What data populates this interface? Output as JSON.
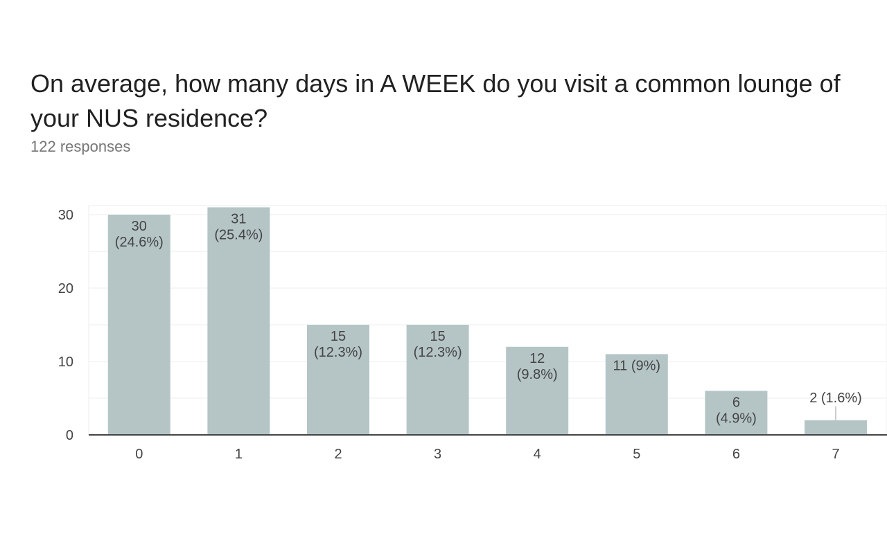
{
  "question": {
    "title": "On average, how many days in A WEEK do you visit a common lounge of your NUS residence?",
    "responses": "122 responses"
  },
  "colors": {
    "bar": "#b5c5c6",
    "grid": "#ececec",
    "axis": "#444444"
  },
  "chart_data": {
    "type": "bar",
    "title": "On average, how many days in A WEEK do you visit a common lounge of your NUS residence?",
    "xlabel": "",
    "ylabel": "",
    "categories": [
      "0",
      "1",
      "2",
      "3",
      "4",
      "5",
      "6",
      "7"
    ],
    "values": [
      30,
      31,
      15,
      15,
      12,
      11,
      6,
      2
    ],
    "data_labels": [
      [
        "30",
        "(24.6%)"
      ],
      [
        "31",
        "(25.4%)"
      ],
      [
        "15",
        "(12.3%)"
      ],
      [
        "15",
        "(12.3%)"
      ],
      [
        "12",
        "(9.8%)"
      ],
      [
        "11 (9%)"
      ],
      [
        "6",
        "(4.9%)"
      ],
      [
        "2 (1.6%)"
      ]
    ],
    "yticks": [
      0,
      10,
      20,
      30
    ],
    "ylim": [
      0,
      31
    ],
    "grid": true,
    "legend": "none"
  }
}
